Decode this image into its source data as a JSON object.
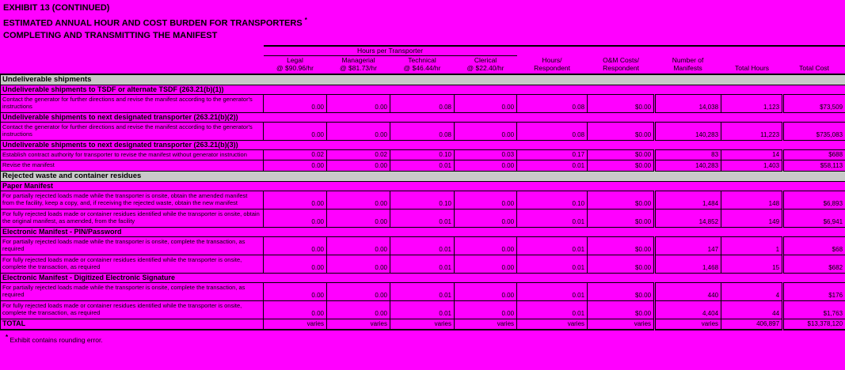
{
  "colors": {
    "page_background": "#ff00ff",
    "section_header_background": "#c9c9c9",
    "text": "#000000",
    "border": "#000000"
  },
  "title": {
    "line1": "EXHIBIT 13 (CONTINUED)",
    "line2": "ESTIMATED ANNUAL HOUR AND COST BURDEN FOR TRANSPORTERS",
    "line2_marker": "*",
    "line3": "COMPLETING AND TRANSMITTING THE MANIFEST"
  },
  "table": {
    "group_header": "Hours per Transporter",
    "columns": [
      {
        "id": "legal",
        "lines": [
          "Legal",
          "@ $90.96/hr"
        ]
      },
      {
        "id": "managerial",
        "lines": [
          "Managerial",
          "@ $81.73/hr"
        ]
      },
      {
        "id": "technical",
        "lines": [
          "Technical",
          "@ $46.44/hr"
        ]
      },
      {
        "id": "clerical",
        "lines": [
          "Clerical",
          "@ $22.40/hr"
        ]
      },
      {
        "id": "hours-respondent",
        "lines": [
          "Hours/",
          "Respondent"
        ]
      },
      {
        "id": "om-costs-respondent",
        "lines": [
          "O&M Costs/",
          "Respondent"
        ]
      },
      {
        "id": "number-of-manifests",
        "lines": [
          "Number of",
          "Manifests"
        ]
      },
      {
        "id": "total-hours",
        "lines": [
          "Total Hours"
        ]
      },
      {
        "id": "total-cost",
        "lines": [
          "Total Cost"
        ]
      }
    ],
    "rows": [
      {
        "type": "section",
        "label": "Undeliverable shipments"
      },
      {
        "type": "subheader",
        "label": "Undeliverable shipments to TSDF or alternate TSDF (263.21(b)(1))"
      },
      {
        "type": "data",
        "desc": "Contact the generator for further directions and revise the manifest according to the generator's instructions",
        "values": [
          "0.00",
          "0.00",
          "0.08",
          "0.00",
          "0.08",
          "$0.00",
          "14,038",
          "1,123",
          "$73,509"
        ]
      },
      {
        "type": "subheader",
        "label": "Undeliverable shipments to next designated transporter (263.21(b)(2))"
      },
      {
        "type": "data",
        "desc": "Contact the generator for further directions and revise the manifest according to the generator's instructions",
        "values": [
          "0.00",
          "0.00",
          "0.08",
          "0.00",
          "0.08",
          "$0.00",
          "140,283",
          "11,223",
          "$735,083"
        ]
      },
      {
        "type": "subheader",
        "label": "Undeliverable shipments to next designated transporter (263.21(b)(3))"
      },
      {
        "type": "data",
        "desc": "Establish contract authority for transporter to revise the manifest without generator instruction",
        "values": [
          "0.02",
          "0.02",
          "0.10",
          "0.03",
          "0.17",
          "$0.00",
          "83",
          "14",
          "$688"
        ]
      },
      {
        "type": "data",
        "desc": "Revise the manifest",
        "values": [
          "0.00",
          "0.00",
          "0.01",
          "0.00",
          "0.01",
          "$0.00",
          "140,283",
          "1,403",
          "$58,113"
        ]
      },
      {
        "type": "section",
        "label": "Rejected waste and container residues"
      },
      {
        "type": "subheader",
        "label": "Paper Manifest"
      },
      {
        "type": "data",
        "desc": "For partially rejected loads made while the transporter is onsite, obtain the amended manifest from the facility, keep a copy, and, if receiving the rejected waste, obtain the new manifest",
        "values": [
          "0.00",
          "0.00",
          "0.10",
          "0.00",
          "0.10",
          "$0.00",
          "1,484",
          "148",
          "$6,893"
        ]
      },
      {
        "type": "data",
        "desc": "For fully rejected loads made or container residues identified while the transporter is onsite, obtain the original manifest, as amended, from the facility",
        "values": [
          "0.00",
          "0.00",
          "0.01",
          "0.00",
          "0.01",
          "$0.00",
          "14,852",
          "149",
          "$6,941"
        ]
      },
      {
        "type": "subheader",
        "label": "Electronic Manifest - PIN/Password"
      },
      {
        "type": "data",
        "desc": "For partially rejected loads made while the transporter is onsite, complete the transaction, as required",
        "values": [
          "0.00",
          "0.00",
          "0.01",
          "0.00",
          "0.01",
          "$0.00",
          "147",
          "1",
          "$68"
        ]
      },
      {
        "type": "data",
        "desc": "For fully rejected loads made or container residues identified while the transporter is onsite, complete the transaction, as required",
        "values": [
          "0.00",
          "0.00",
          "0.01",
          "0.00",
          "0.01",
          "$0.00",
          "1,468",
          "15",
          "$682"
        ]
      },
      {
        "type": "subheader",
        "label": "Electronic Manifest - Digitized Electronic Signature"
      },
      {
        "type": "data",
        "desc": "For partially rejected loads made while the transporter is onsite, complete the transaction, as required",
        "values": [
          "0.00",
          "0.00",
          "0.01",
          "0.00",
          "0.01",
          "$0.00",
          "440",
          "4",
          "$176"
        ]
      },
      {
        "type": "data",
        "desc": "For fully rejected loads made or container residues identified while the transporter is onsite, complete the transaction, as required",
        "values": [
          "0.00",
          "0.00",
          "0.01",
          "0.00",
          "0.01",
          "$0.00",
          "4,404",
          "44",
          "$1,763"
        ]
      },
      {
        "type": "total",
        "desc": "TOTAL",
        "values": [
          "varies",
          "varies",
          "varies",
          "varies",
          "varies",
          "varies",
          "varies",
          "406,897",
          "$13,378,120"
        ]
      }
    ]
  },
  "footnote": {
    "marker": "*",
    "text": "Exhibit contains rounding error."
  }
}
